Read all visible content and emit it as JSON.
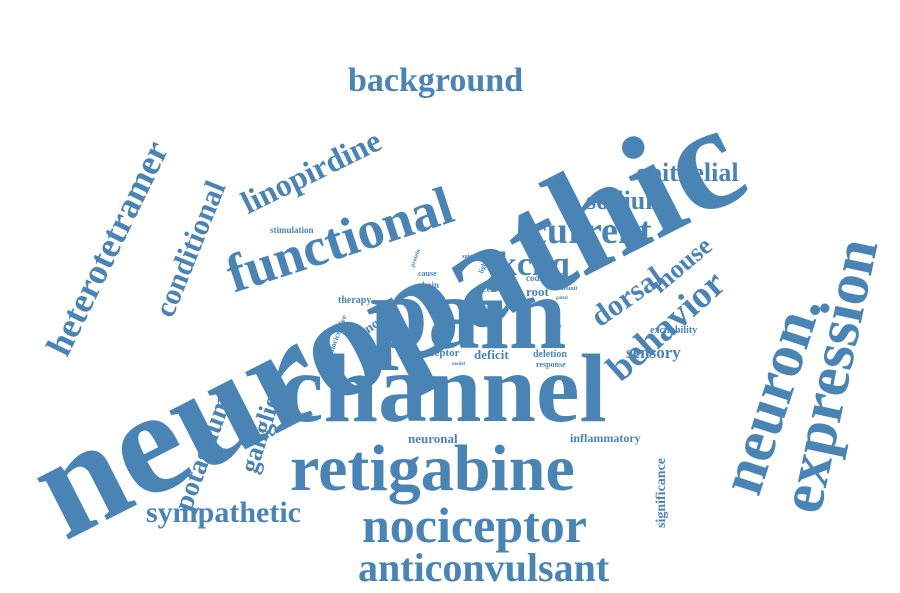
{
  "style": {
    "word_color": "#4a84b5",
    "background": "#ffffff"
  },
  "words": {
    "neuropathic": "neuropathic",
    "channel": "channel",
    "pain": "pain",
    "retigabine": "retigabine",
    "expression": "expression",
    "neuron": "neuron.",
    "nociceptor": "nociceptor",
    "functional": "functional",
    "anticonvulsant": "anticonvulsant",
    "heterotetramer": "heterotetramer",
    "background": "background",
    "conditional": "conditional",
    "behavior": "behavior",
    "current": "current",
    "linopirdine": "linopirdine",
    "sympathetic": "sympathetic",
    "potassium": "potassium",
    "ganglion": "ganglion",
    "kcnq": "kcnq",
    "dorsal": "dorsal",
    "mouse": "mouse",
    "epithelial": "epithelial",
    "sodium": "sodium",
    "sensory": "sensory",
    "significance": "significance",
    "inflammatory": "inflammatory",
    "neuronal": "neuronal",
    "excitability": "excitability",
    "deficit": "deficit",
    "deletion": "deletion",
    "response": "response",
    "receptor": "receptor",
    "knock": "knock",
    "therapy": "therapy",
    "nociceptive": "nociceptive",
    "primary": "primary",
    "cell": "cell",
    "root": "root",
    "coding": "coding",
    "subunit": "subunit",
    "cause": "cause",
    "chain": "chain",
    "stimulation": "stimulation",
    "spinal": "spinal",
    "protein": "protein",
    "light": "light",
    "role": "role",
    "system": "system",
    "model": "model",
    "gated": "gated",
    "here": "here"
  }
}
